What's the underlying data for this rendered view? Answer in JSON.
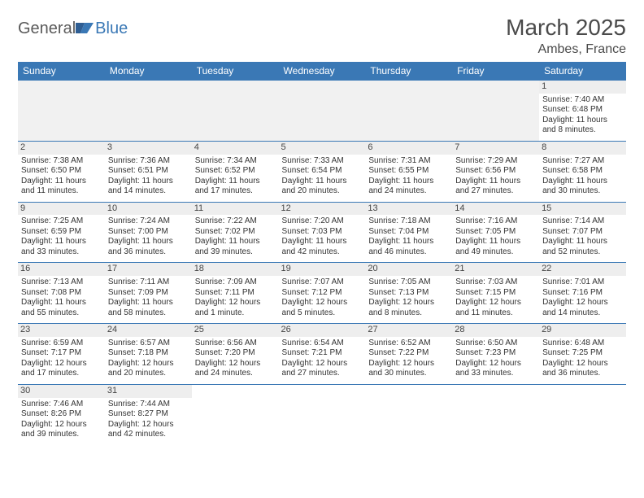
{
  "logo": {
    "part1": "General",
    "part2": "Blue"
  },
  "title": "March 2025",
  "location": "Ambes, France",
  "colors": {
    "header_bg": "#3a78b5",
    "header_text": "#ffffff",
    "border": "#3a78b5",
    "daynum_bg": "#eeeeee",
    "blank_bg": "#f1f1f1",
    "text": "#333333",
    "title_text": "#4a4a4a"
  },
  "day_headers": [
    "Sunday",
    "Monday",
    "Tuesday",
    "Wednesday",
    "Thursday",
    "Friday",
    "Saturday"
  ],
  "weeks": [
    [
      null,
      null,
      null,
      null,
      null,
      null,
      {
        "n": "1",
        "sunrise": "Sunrise: 7:40 AM",
        "sunset": "Sunset: 6:48 PM",
        "day1": "Daylight: 11 hours",
        "day2": "and 8 minutes."
      }
    ],
    [
      {
        "n": "2",
        "sunrise": "Sunrise: 7:38 AM",
        "sunset": "Sunset: 6:50 PM",
        "day1": "Daylight: 11 hours",
        "day2": "and 11 minutes."
      },
      {
        "n": "3",
        "sunrise": "Sunrise: 7:36 AM",
        "sunset": "Sunset: 6:51 PM",
        "day1": "Daylight: 11 hours",
        "day2": "and 14 minutes."
      },
      {
        "n": "4",
        "sunrise": "Sunrise: 7:34 AM",
        "sunset": "Sunset: 6:52 PM",
        "day1": "Daylight: 11 hours",
        "day2": "and 17 minutes."
      },
      {
        "n": "5",
        "sunrise": "Sunrise: 7:33 AM",
        "sunset": "Sunset: 6:54 PM",
        "day1": "Daylight: 11 hours",
        "day2": "and 20 minutes."
      },
      {
        "n": "6",
        "sunrise": "Sunrise: 7:31 AM",
        "sunset": "Sunset: 6:55 PM",
        "day1": "Daylight: 11 hours",
        "day2": "and 24 minutes."
      },
      {
        "n": "7",
        "sunrise": "Sunrise: 7:29 AM",
        "sunset": "Sunset: 6:56 PM",
        "day1": "Daylight: 11 hours",
        "day2": "and 27 minutes."
      },
      {
        "n": "8",
        "sunrise": "Sunrise: 7:27 AM",
        "sunset": "Sunset: 6:58 PM",
        "day1": "Daylight: 11 hours",
        "day2": "and 30 minutes."
      }
    ],
    [
      {
        "n": "9",
        "sunrise": "Sunrise: 7:25 AM",
        "sunset": "Sunset: 6:59 PM",
        "day1": "Daylight: 11 hours",
        "day2": "and 33 minutes."
      },
      {
        "n": "10",
        "sunrise": "Sunrise: 7:24 AM",
        "sunset": "Sunset: 7:00 PM",
        "day1": "Daylight: 11 hours",
        "day2": "and 36 minutes."
      },
      {
        "n": "11",
        "sunrise": "Sunrise: 7:22 AM",
        "sunset": "Sunset: 7:02 PM",
        "day1": "Daylight: 11 hours",
        "day2": "and 39 minutes."
      },
      {
        "n": "12",
        "sunrise": "Sunrise: 7:20 AM",
        "sunset": "Sunset: 7:03 PM",
        "day1": "Daylight: 11 hours",
        "day2": "and 42 minutes."
      },
      {
        "n": "13",
        "sunrise": "Sunrise: 7:18 AM",
        "sunset": "Sunset: 7:04 PM",
        "day1": "Daylight: 11 hours",
        "day2": "and 46 minutes."
      },
      {
        "n": "14",
        "sunrise": "Sunrise: 7:16 AM",
        "sunset": "Sunset: 7:05 PM",
        "day1": "Daylight: 11 hours",
        "day2": "and 49 minutes."
      },
      {
        "n": "15",
        "sunrise": "Sunrise: 7:14 AM",
        "sunset": "Sunset: 7:07 PM",
        "day1": "Daylight: 11 hours",
        "day2": "and 52 minutes."
      }
    ],
    [
      {
        "n": "16",
        "sunrise": "Sunrise: 7:13 AM",
        "sunset": "Sunset: 7:08 PM",
        "day1": "Daylight: 11 hours",
        "day2": "and 55 minutes."
      },
      {
        "n": "17",
        "sunrise": "Sunrise: 7:11 AM",
        "sunset": "Sunset: 7:09 PM",
        "day1": "Daylight: 11 hours",
        "day2": "and 58 minutes."
      },
      {
        "n": "18",
        "sunrise": "Sunrise: 7:09 AM",
        "sunset": "Sunset: 7:11 PM",
        "day1": "Daylight: 12 hours",
        "day2": "and 1 minute."
      },
      {
        "n": "19",
        "sunrise": "Sunrise: 7:07 AM",
        "sunset": "Sunset: 7:12 PM",
        "day1": "Daylight: 12 hours",
        "day2": "and 5 minutes."
      },
      {
        "n": "20",
        "sunrise": "Sunrise: 7:05 AM",
        "sunset": "Sunset: 7:13 PM",
        "day1": "Daylight: 12 hours",
        "day2": "and 8 minutes."
      },
      {
        "n": "21",
        "sunrise": "Sunrise: 7:03 AM",
        "sunset": "Sunset: 7:15 PM",
        "day1": "Daylight: 12 hours",
        "day2": "and 11 minutes."
      },
      {
        "n": "22",
        "sunrise": "Sunrise: 7:01 AM",
        "sunset": "Sunset: 7:16 PM",
        "day1": "Daylight: 12 hours",
        "day2": "and 14 minutes."
      }
    ],
    [
      {
        "n": "23",
        "sunrise": "Sunrise: 6:59 AM",
        "sunset": "Sunset: 7:17 PM",
        "day1": "Daylight: 12 hours",
        "day2": "and 17 minutes."
      },
      {
        "n": "24",
        "sunrise": "Sunrise: 6:57 AM",
        "sunset": "Sunset: 7:18 PM",
        "day1": "Daylight: 12 hours",
        "day2": "and 20 minutes."
      },
      {
        "n": "25",
        "sunrise": "Sunrise: 6:56 AM",
        "sunset": "Sunset: 7:20 PM",
        "day1": "Daylight: 12 hours",
        "day2": "and 24 minutes."
      },
      {
        "n": "26",
        "sunrise": "Sunrise: 6:54 AM",
        "sunset": "Sunset: 7:21 PM",
        "day1": "Daylight: 12 hours",
        "day2": "and 27 minutes."
      },
      {
        "n": "27",
        "sunrise": "Sunrise: 6:52 AM",
        "sunset": "Sunset: 7:22 PM",
        "day1": "Daylight: 12 hours",
        "day2": "and 30 minutes."
      },
      {
        "n": "28",
        "sunrise": "Sunrise: 6:50 AM",
        "sunset": "Sunset: 7:23 PM",
        "day1": "Daylight: 12 hours",
        "day2": "and 33 minutes."
      },
      {
        "n": "29",
        "sunrise": "Sunrise: 6:48 AM",
        "sunset": "Sunset: 7:25 PM",
        "day1": "Daylight: 12 hours",
        "day2": "and 36 minutes."
      }
    ],
    [
      {
        "n": "30",
        "sunrise": "Sunrise: 7:46 AM",
        "sunset": "Sunset: 8:26 PM",
        "day1": "Daylight: 12 hours",
        "day2": "and 39 minutes."
      },
      {
        "n": "31",
        "sunrise": "Sunrise: 7:44 AM",
        "sunset": "Sunset: 8:27 PM",
        "day1": "Daylight: 12 hours",
        "day2": "and 42 minutes."
      },
      null,
      null,
      null,
      null,
      null
    ]
  ]
}
